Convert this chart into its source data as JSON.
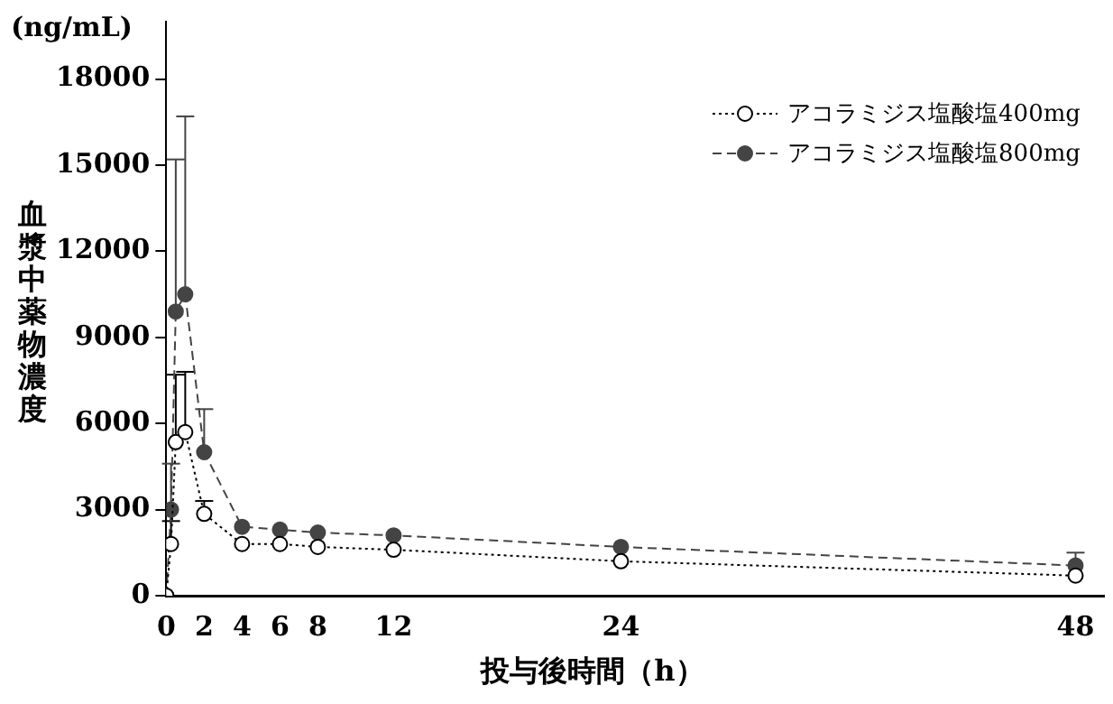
{
  "chart_data": {
    "type": "line",
    "xlabel": "投与後時間（h）",
    "ylabel": "血漿中薬物濃度",
    "annotations": [
      "(ng/mL)"
    ],
    "x": [
      0,
      0.25,
      0.5,
      1,
      2,
      4,
      6,
      8,
      12,
      24,
      48
    ],
    "series": [
      {
        "name": "アコラミジス塩酸塩400mg",
        "color": "#000000",
        "line_style": "dotted",
        "values": [
          0,
          1800,
          5350,
          5700,
          2850,
          1800,
          1800,
          1700,
          1600,
          1200,
          700
        ],
        "errors": [
          null,
          [
            1800,
            2600
          ],
          [
            5350,
            7700
          ],
          [
            5700,
            7800
          ],
          [
            2850,
            3300
          ],
          null,
          null,
          null,
          null,
          null,
          null
        ]
      },
      {
        "name": "アコラミジス塩酸塩800mg",
        "color": "#444444",
        "line_style": "dashed",
        "values": [
          0,
          3000,
          9900,
          10500,
          5000,
          2400,
          2300,
          2200,
          2100,
          1700,
          1050
        ],
        "errors": [
          null,
          [
            3000,
            4600
          ],
          [
            9900,
            15200
          ],
          [
            10500,
            16700
          ],
          [
            5000,
            6500
          ],
          null,
          null,
          null,
          null,
          null,
          [
            1050,
            1500
          ]
        ]
      }
    ],
    "xlim": [
      0,
      49.5
    ],
    "xticks": [
      0,
      2,
      4,
      6,
      8,
      12,
      24,
      48
    ],
    "ylim": [
      0,
      20000
    ],
    "yticks": [
      0,
      3000,
      6000,
      9000,
      12000,
      15000,
      18000
    ],
    "marker": "circle",
    "legend": "top right",
    "grid": false
  }
}
